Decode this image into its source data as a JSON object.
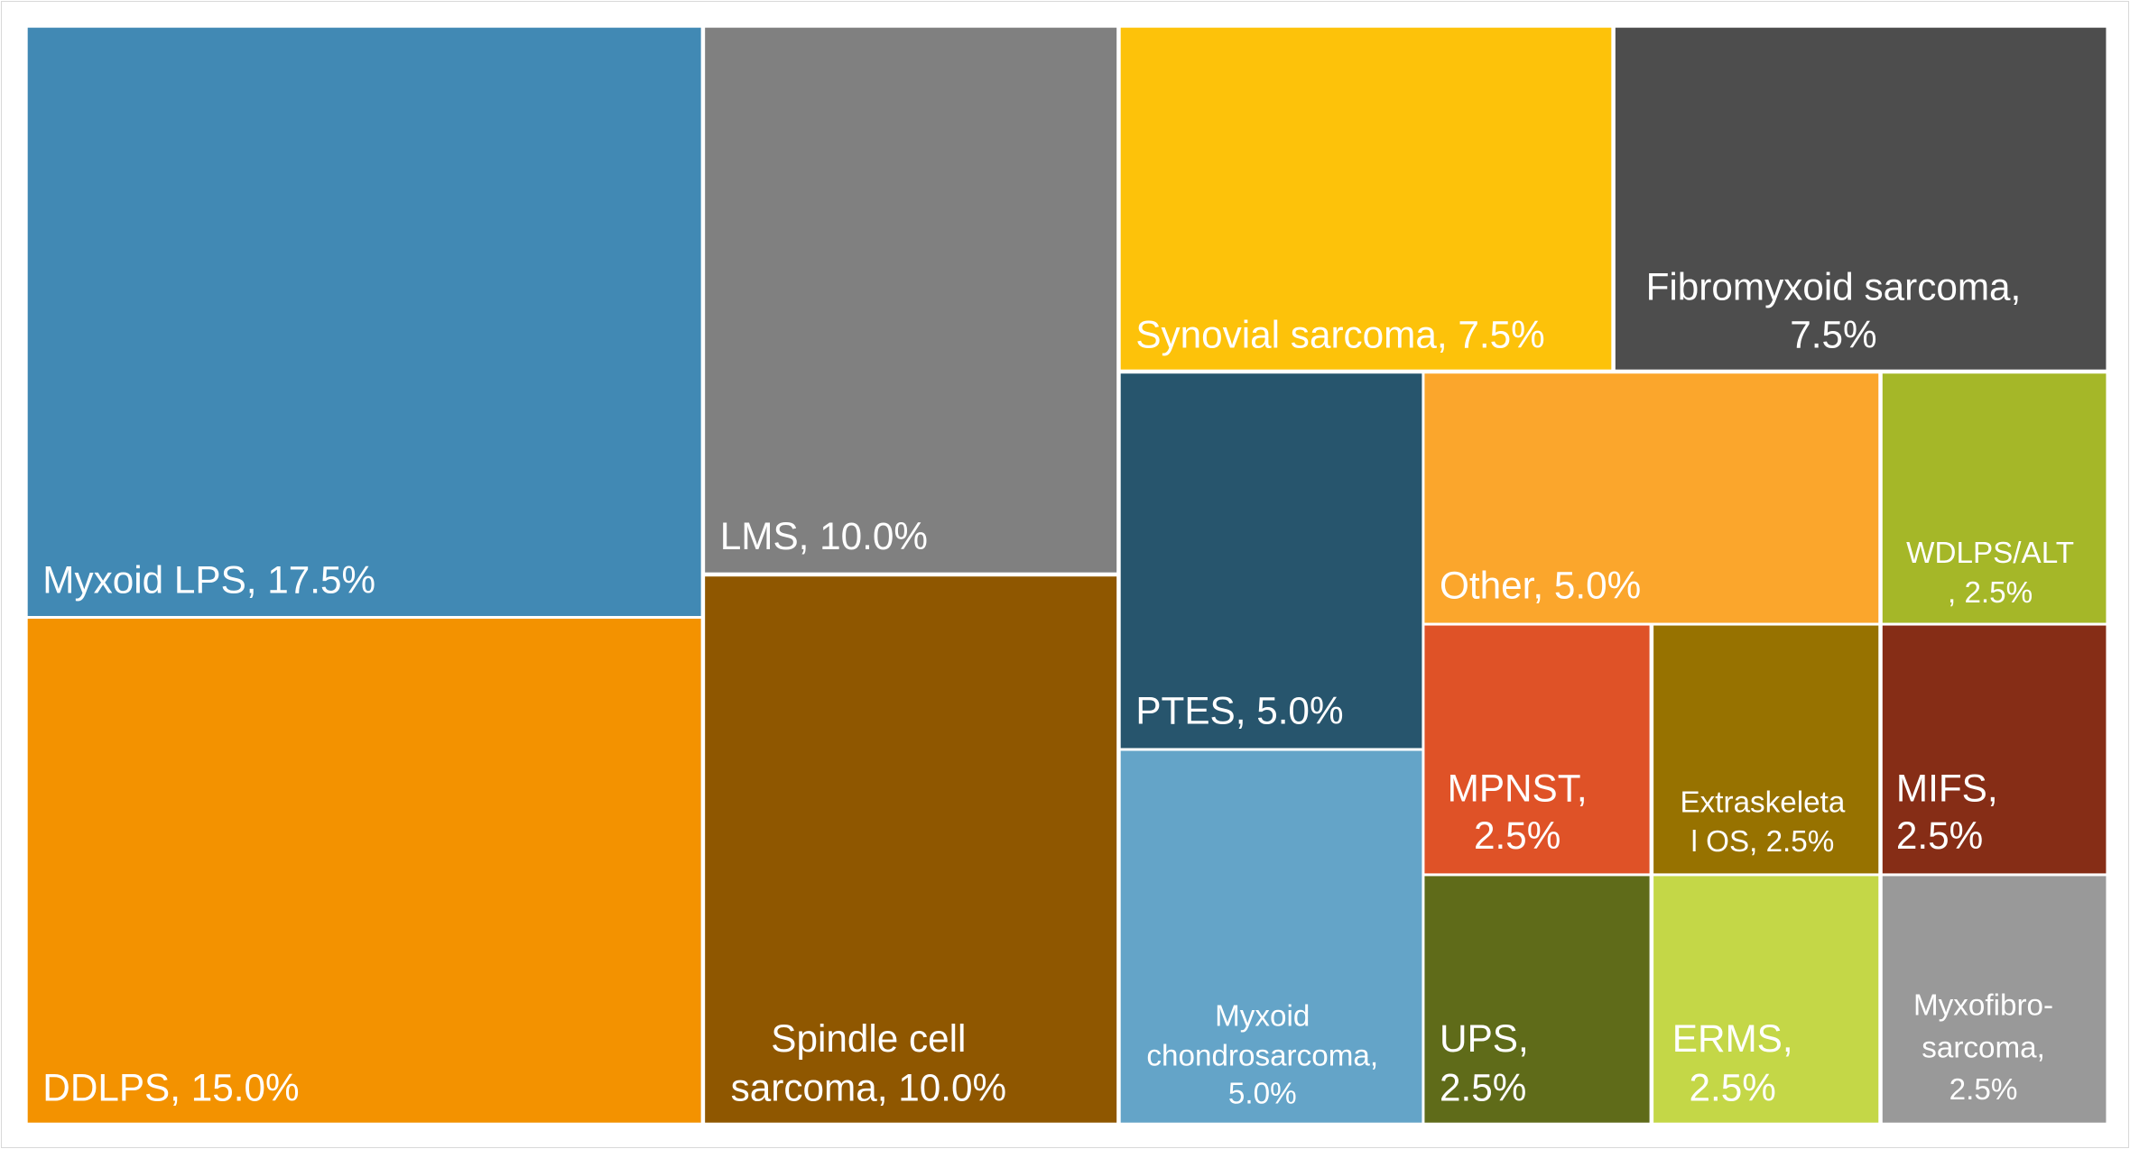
{
  "chart_data": {
    "type": "treemap",
    "unit": "%",
    "items": [
      {
        "label": "Myxoid LPS, 17.5%",
        "name": "Myxoid LPS",
        "value": 17.5,
        "color": "#4189B4"
      },
      {
        "label": "DDLPS, 15.0%",
        "name": "DDLPS",
        "value": 15.0,
        "color": "#F39200"
      },
      {
        "label": "LMS, 10.0%",
        "name": "LMS",
        "value": 10.0,
        "color": "#808080"
      },
      {
        "label": "Spindle cell sarcoma, 10.0%",
        "name": "Spindle cell sarcoma",
        "value": 10.0,
        "color": "#8F5700"
      },
      {
        "label": "Synovial sarcoma, 7.5%",
        "name": "Synovial sarcoma",
        "value": 7.5,
        "color": "#FDC20A"
      },
      {
        "label": "Fibromyxoid sarcoma, 7.5%",
        "name": "Fibromyxoid sarcoma",
        "value": 7.5,
        "color": "#4D4D4D"
      },
      {
        "label": "PTES, 5.0%",
        "name": "PTES",
        "value": 5.0,
        "color": "#27556D"
      },
      {
        "label": "Myxoid chondrosarcoma, 5.0%",
        "name": "Myxoid chondrosarcoma",
        "value": 5.0,
        "color": "#64A4C8"
      },
      {
        "label": "Other, 5.0%",
        "name": "Other",
        "value": 5.0,
        "color": "#FBA62C"
      },
      {
        "label": "WDLPS/ALT, 2.5%",
        "name": "WDLPS/ALT",
        "value": 2.5,
        "color": "#A5B728"
      },
      {
        "label": "MPNST, 2.5%",
        "name": "MPNST",
        "value": 2.5,
        "color": "#DF5227"
      },
      {
        "label": "Extraskeletal OS, 2.5%",
        "name": "Extraskeletal OS",
        "value": 2.5,
        "color": "#977200"
      },
      {
        "label": "MIFS, 2.5%",
        "name": "MIFS",
        "value": 2.5,
        "color": "#862D16"
      },
      {
        "label": "UPS, 2.5%",
        "name": "UPS",
        "value": 2.5,
        "color": "#5F6B19"
      },
      {
        "label": "ERMS, 2.5%",
        "name": "ERMS",
        "value": 2.5,
        "color": "#C4D747"
      },
      {
        "label": "Myxofibro-sarcoma, 2.5%",
        "name": "Myxofibrosarcoma",
        "value": 2.5,
        "color": "#999999"
      }
    ]
  }
}
